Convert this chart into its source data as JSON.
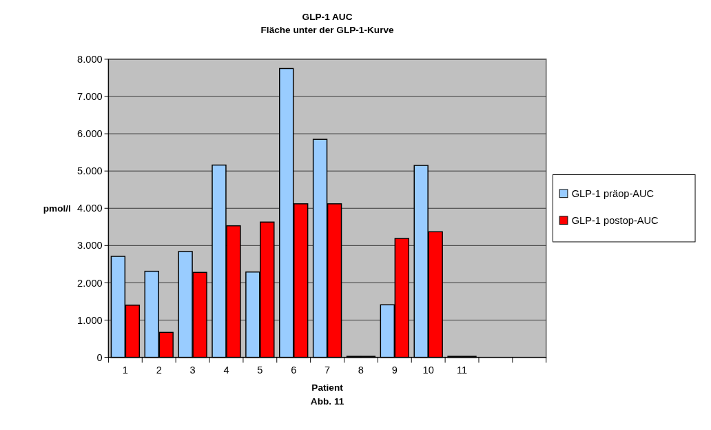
{
  "chart_data": {
    "type": "bar",
    "title": "GLP-1 AUC",
    "subtitle": "Fläche unter der GLP-1-Kurve",
    "xlabel": "Patient",
    "ylabel": "pmol/l",
    "annotations": [
      "Abb. 11"
    ],
    "categories": [
      "1",
      "2",
      "3",
      "4",
      "5",
      "6",
      "7",
      "8",
      "9",
      "10",
      "11",
      null,
      null
    ],
    "series": [
      {
        "name": "GLP-1 präop-AUC",
        "color": "#99ccff",
        "values": [
          2710,
          2310,
          2840,
          5160,
          2290,
          7750,
          5850,
          0,
          1410,
          5150,
          0,
          null,
          null
        ]
      },
      {
        "name": "GLP-1 postop-AUC",
        "color": "#ff0000",
        "values": [
          1400,
          670,
          2280,
          3530,
          3630,
          4120,
          4120,
          0,
          3190,
          3370,
          0,
          null,
          null
        ]
      }
    ],
    "ylim": [
      0,
      8000
    ],
    "yticks": [
      {
        "value": 0,
        "label": "0"
      },
      {
        "value": 1000,
        "label": "1.000"
      },
      {
        "value": 2000,
        "label": "2.000"
      },
      {
        "value": 3000,
        "label": "3.000"
      },
      {
        "value": 4000,
        "label": "4.000"
      },
      {
        "value": 5000,
        "label": "5.000"
      },
      {
        "value": 6000,
        "label": "6.000"
      },
      {
        "value": 7000,
        "label": "7.000"
      },
      {
        "value": 8000,
        "label": "8.000"
      }
    ],
    "grid": "y",
    "legend": "right"
  }
}
